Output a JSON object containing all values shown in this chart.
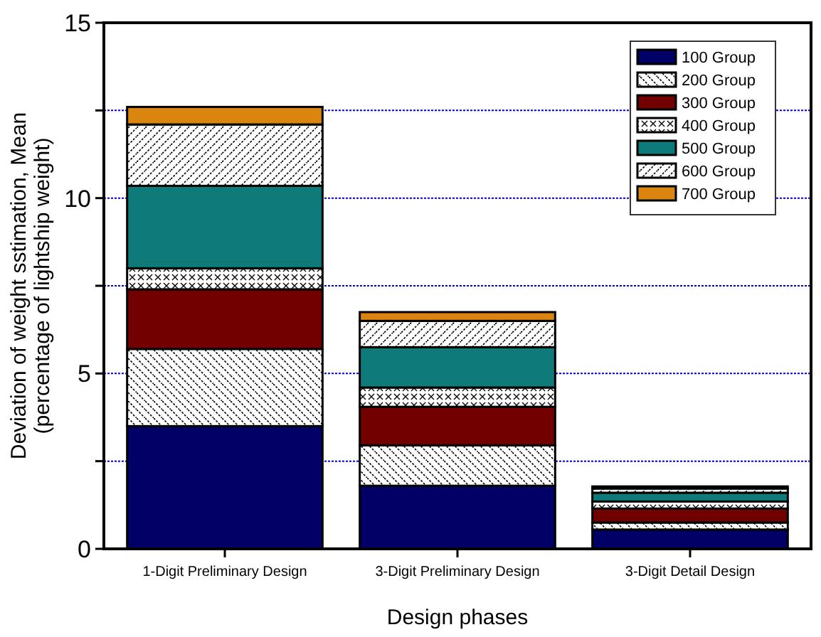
{
  "chart_data": {
    "type": "bar",
    "stacked": true,
    "xlabel": "Design phases",
    "ylabel": "Deviation of weight sstimation, Mean\n(percentage of lightship weight)",
    "categories": [
      "1-Digit Preliminary Design",
      "3-Digit Preliminary Design",
      "3-Digit Detail Design"
    ],
    "series": [
      {
        "name": "100 Group",
        "color": "#000066",
        "values": [
          3.5,
          1.8,
          0.55
        ]
      },
      {
        "name": "200 Group",
        "color": "#000000",
        "values": [
          2.2,
          1.15,
          0.2
        ]
      },
      {
        "name": "300 Group",
        "color": "#730000",
        "values": [
          1.7,
          1.1,
          0.4
        ]
      },
      {
        "name": "400 Group",
        "color": "#000000",
        "values": [
          0.6,
          0.55,
          0.2
        ]
      },
      {
        "name": "500 Group",
        "color": "#0e7a7a",
        "values": [
          2.35,
          1.15,
          0.25
        ]
      },
      {
        "name": "600 Group",
        "color": "#000000",
        "values": [
          1.75,
          0.75,
          0.12
        ]
      },
      {
        "name": "700 Group",
        "color": "#d98510",
        "values": [
          0.5,
          0.25,
          0.06
        ]
      }
    ],
    "ylim": [
      0,
      15
    ],
    "yticks": [
      0,
      {
        "value": 2.5,
        "label": null
      },
      5,
      {
        "value": 7.5,
        "label": null
      },
      10,
      {
        "value": 12.5,
        "label": null
      },
      15
    ],
    "grid": "y",
    "legend": "top right"
  }
}
